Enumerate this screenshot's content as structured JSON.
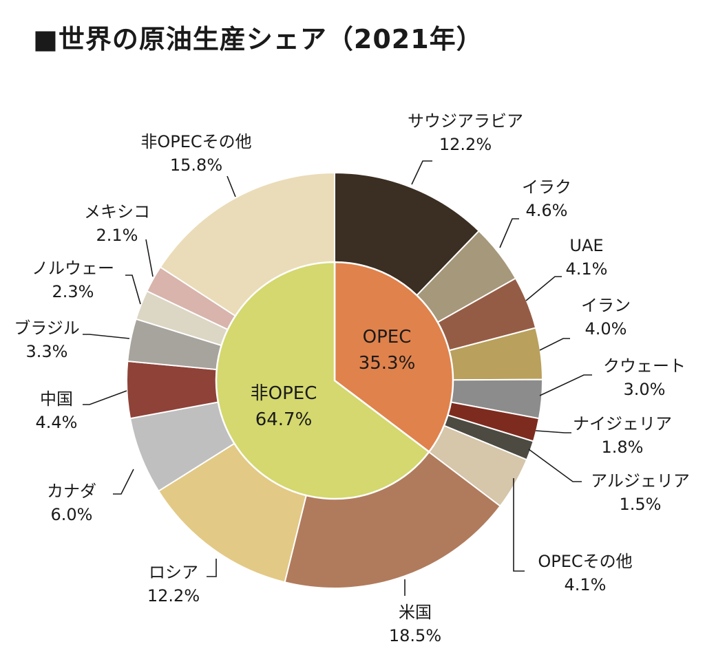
{
  "chart_data": {
    "type": "pie",
    "title": "■世界の原油生産シェア（2021年）",
    "unit": "%",
    "inner": [
      {
        "label": "OPEC",
        "value": 35.3,
        "value_label": "35.3%",
        "color": "#e0824c"
      },
      {
        "label": "非OPEC",
        "value": 64.7,
        "value_label": "64.7%",
        "color": "#d4d86e"
      }
    ],
    "outer": [
      {
        "label": "サウジアラビア",
        "value": 12.2,
        "value_label": "12.2%",
        "group": "OPEC",
        "color": "#3b2e22"
      },
      {
        "label": "イラク",
        "value": 4.6,
        "value_label": "4.6%",
        "group": "OPEC",
        "color": "#a6987a"
      },
      {
        "label": "UAE",
        "value": 4.1,
        "value_label": "4.1%",
        "group": "OPEC",
        "color": "#955c45"
      },
      {
        "label": "イラン",
        "value": 4.0,
        "value_label": "4.0%",
        "group": "OPEC",
        "color": "#b9a05c"
      },
      {
        "label": "クウェート",
        "value": 3.0,
        "value_label": "3.0%",
        "group": "OPEC",
        "color": "#8c8c8c"
      },
      {
        "label": "ナイジェリア",
        "value": 1.8,
        "value_label": "1.8%",
        "group": "OPEC",
        "color": "#7e2b1f"
      },
      {
        "label": "アルジェリア",
        "value": 1.5,
        "value_label": "1.5%",
        "group": "OPEC",
        "color": "#4d4a42"
      },
      {
        "label": "OPECその他",
        "value": 4.1,
        "value_label": "4.1%",
        "group": "OPEC",
        "color": "#d6c6aa"
      },
      {
        "label": "米国",
        "value": 18.5,
        "value_label": "18.5%",
        "group": "非OPEC",
        "color": "#b07b5c"
      },
      {
        "label": "ロシア",
        "value": 12.2,
        "value_label": "12.2%",
        "group": "非OPEC",
        "color": "#e3c986"
      },
      {
        "label": "カナダ",
        "value": 6.0,
        "value_label": "6.0%",
        "group": "非OPEC",
        "color": "#c0bfbf"
      },
      {
        "label": "中国",
        "value": 4.4,
        "value_label": "4.4%",
        "group": "非OPEC",
        "color": "#8e4238"
      },
      {
        "label": "ブラジル",
        "value": 3.3,
        "value_label": "3.3%",
        "group": "非OPEC",
        "color": "#a7a39d"
      },
      {
        "label": "ノルウェー",
        "value": 2.3,
        "value_label": "2.3%",
        "group": "非OPEC",
        "color": "#dcd6c4"
      },
      {
        "label": "メキシコ",
        "value": 2.1,
        "value_label": "2.1%",
        "group": "非OPEC",
        "color": "#d8b4ac"
      },
      {
        "label": "非OPECその他",
        "value": 15.8,
        "value_label": "15.8%",
        "group": "非OPEC",
        "color": "#eadcb8"
      }
    ]
  }
}
